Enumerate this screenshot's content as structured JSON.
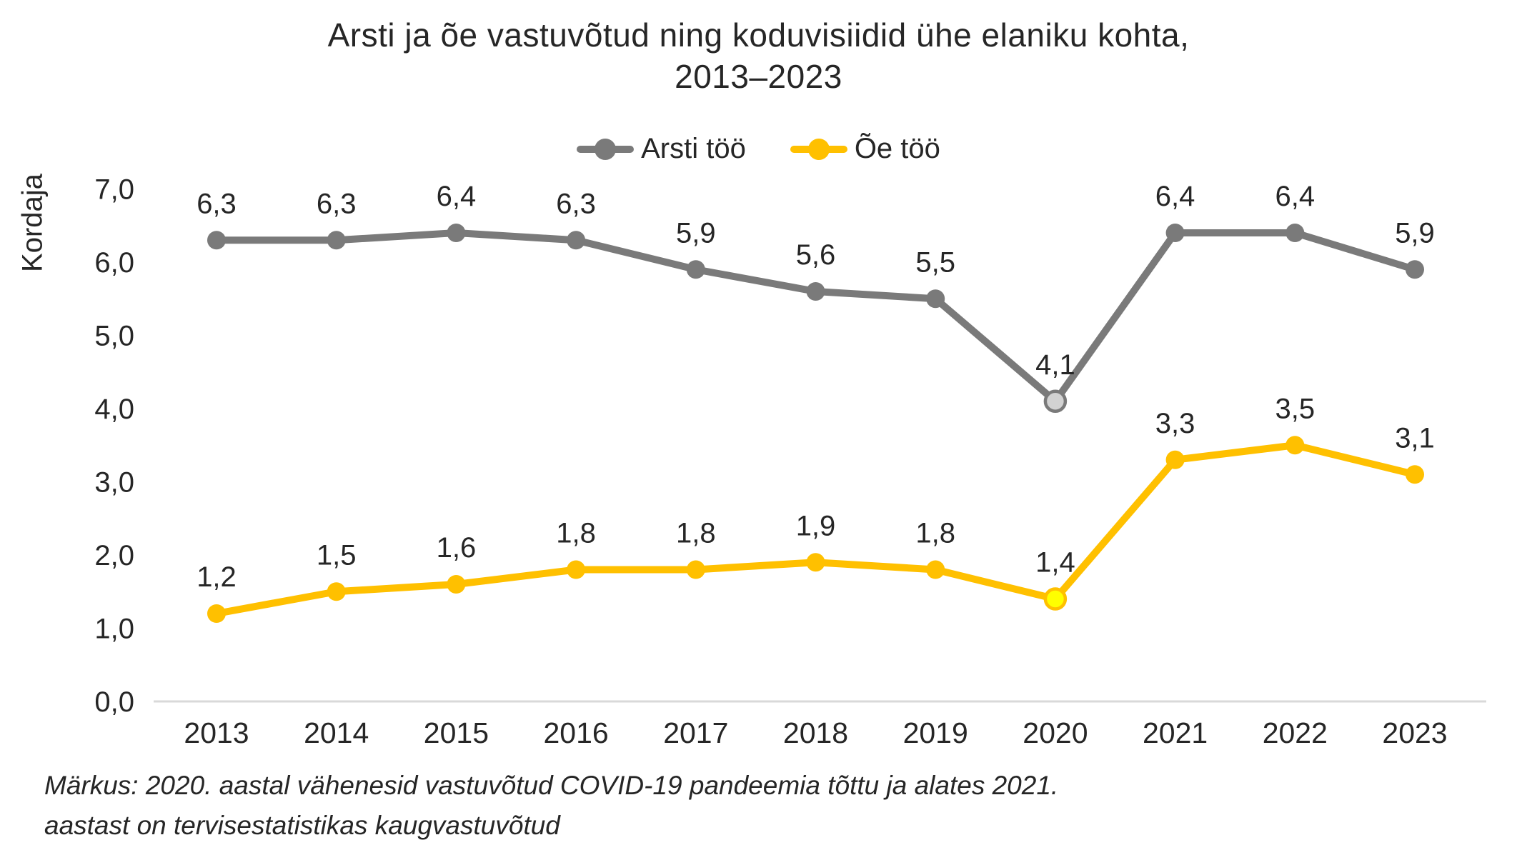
{
  "title": {
    "line1": "Arsti ja õe vastuvõtud ning koduvisiidid ühe elaniku kohta,",
    "line2": "2013–2023"
  },
  "y_axis_title": "Kordaja",
  "note": {
    "line1": "Märkus: 2020. aastal vähenesid vastuvõtud COVID-19 pandeemia tõttu ja alates 2021.",
    "line2": "aastast on tervisestatistikas kaugvastuvõtud"
  },
  "colors": {
    "text": "#262626",
    "axis_line": "#d9d9d9",
    "doctor_series": "#7a7a7a",
    "nurse_series": "#ffc000",
    "doctor_highlight_fill": "#d2d2d2",
    "nurse_highlight_fill": "#ffff00"
  },
  "chart_data": {
    "type": "line",
    "title": "Arsti ja õe vastuvõtud ning koduvisiidid ühe elaniku kohta, 2013–2023",
    "xlabel": "",
    "ylabel": "Kordaja",
    "categories": [
      "2013",
      "2014",
      "2015",
      "2016",
      "2017",
      "2018",
      "2019",
      "2020",
      "2021",
      "2022",
      "2023"
    ],
    "series": [
      {
        "name": "Arsti töö",
        "color": "#7a7a7a",
        "values": [
          6.3,
          6.3,
          6.4,
          6.3,
          5.9,
          5.6,
          5.5,
          4.1,
          6.4,
          6.4,
          5.9
        ],
        "labels": [
          "6,3",
          "6,3",
          "6,4",
          "6,3",
          "5,9",
          "5,6",
          "5,5",
          "4,1",
          "6,4",
          "6,4",
          "5,9"
        ],
        "highlight_index": 7,
        "highlight_fill": "#d2d2d2"
      },
      {
        "name": "Õe töö",
        "color": "#ffc000",
        "values": [
          1.2,
          1.5,
          1.6,
          1.8,
          1.8,
          1.9,
          1.8,
          1.4,
          3.3,
          3.5,
          3.1
        ],
        "labels": [
          "1,2",
          "1,5",
          "1,6",
          "1,8",
          "1,8",
          "1,9",
          "1,8",
          "1,4",
          "3,3",
          "3,5",
          "3,1"
        ],
        "highlight_index": 7,
        "highlight_fill": "#ffff00"
      }
    ],
    "ylim": [
      0,
      7
    ],
    "ytick_step": 1,
    "ytick_labels": [
      "0,0",
      "1,0",
      "2,0",
      "3,0",
      "4,0",
      "5,0",
      "6,0",
      "7,0"
    ],
    "grid": false,
    "legend_position": "top",
    "axis_line_color": "#d9d9d9",
    "text_color": "#262626"
  }
}
